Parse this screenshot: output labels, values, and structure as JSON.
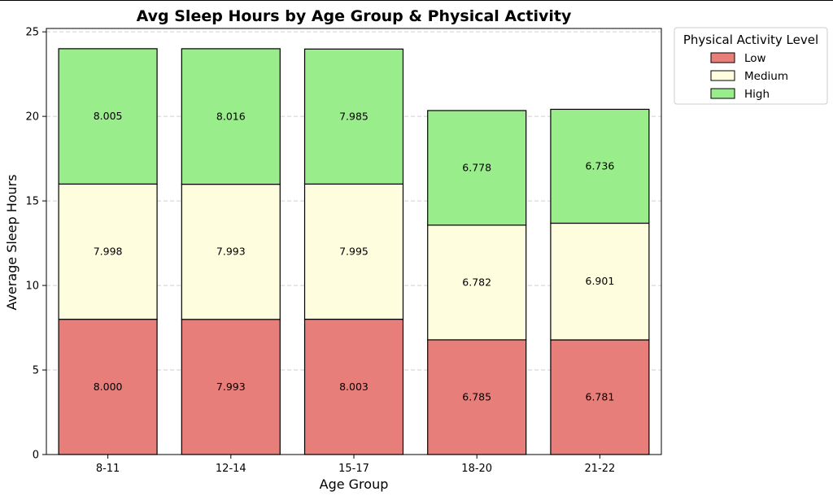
{
  "chart_data": {
    "type": "bar",
    "stacked": true,
    "title": "Avg Sleep Hours by Age Group & Physical Activity",
    "xlabel": "Age Group",
    "ylabel": "Average Sleep Hours",
    "categories": [
      "8-11",
      "12-14",
      "15-17",
      "18-20",
      "21-22"
    ],
    "series": [
      {
        "name": "Low",
        "color": "#e87e7a",
        "values": [
          8.0,
          7.993,
          8.003,
          6.785,
          6.781
        ],
        "labels": [
          "8.000",
          "7.993",
          "8.003",
          "6.785",
          "6.781"
        ]
      },
      {
        "name": "Medium",
        "color": "#fefdde",
        "values": [
          7.998,
          7.993,
          7.995,
          6.782,
          6.901
        ],
        "labels": [
          "7.998",
          "7.993",
          "7.995",
          "6.782",
          "6.901"
        ]
      },
      {
        "name": "High",
        "color": "#9aed8b",
        "values": [
          8.005,
          8.016,
          7.985,
          6.778,
          6.736
        ],
        "labels": [
          "8.005",
          "8.016",
          "7.985",
          "6.778",
          "6.736"
        ]
      }
    ],
    "ylim": [
      0,
      25.2
    ],
    "yticks": [
      0,
      5,
      10,
      15,
      20,
      25
    ],
    "ytick_labels": [
      "0",
      "5",
      "10",
      "15",
      "20",
      "25"
    ],
    "grid": "y-dashed",
    "legend": {
      "title": "Physical Activity Level",
      "placement": "outside-top-right"
    }
  }
}
